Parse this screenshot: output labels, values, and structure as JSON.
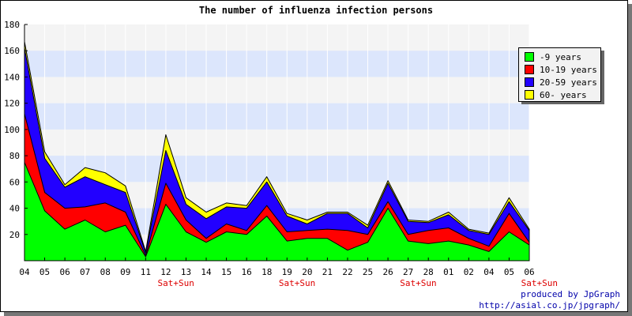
{
  "chart_data": {
    "type": "area",
    "stacked": true,
    "title": "The number of influenza infection persons",
    "categories": [
      "04",
      "05",
      "06",
      "07",
      "08",
      "09",
      "11",
      "12",
      "13",
      "14",
      "15",
      "16",
      "18",
      "19",
      "20",
      "21",
      "22",
      "25",
      "26",
      "27",
      "28",
      "01",
      "02",
      "04",
      "05",
      "06"
    ],
    "category_notes": {
      "7": "Sat+Sun",
      "13": "Sat+Sun",
      "19": "Sat+Sun",
      "25": "Sat+Sun"
    },
    "ylim": [
      0,
      180
    ],
    "yticks": [
      20,
      40,
      60,
      80,
      100,
      120,
      140,
      160,
      180
    ],
    "grid": "horizontal bands",
    "legend_position": "right",
    "series": [
      {
        "name": "-9 years",
        "color": "#00ff00",
        "values": [
          75,
          38,
          24,
          31,
          22,
          27,
          3,
          43,
          22,
          14,
          22,
          20,
          34,
          15,
          17,
          17,
          8,
          14,
          40,
          15,
          13,
          15,
          12,
          7,
          22,
          12
        ]
      },
      {
        "name": "10-19 years",
        "color": "#ff0000",
        "values": [
          37,
          14,
          16,
          10,
          22,
          10,
          1,
          16,
          9,
          3,
          6,
          3,
          8,
          7,
          6,
          7,
          15,
          6,
          5,
          5,
          10,
          10,
          5,
          4,
          14,
          2
        ]
      },
      {
        "name": "20-59 years",
        "color": "#2200ff",
        "values": [
          50,
          26,
          16,
          23,
          14,
          15,
          2,
          25,
          12,
          15,
          13,
          17,
          18,
          12,
          5,
          12,
          13,
          5,
          14,
          10,
          6,
          10,
          6,
          9,
          9,
          9
        ]
      },
      {
        "name": "60- years",
        "color": "#ffff00",
        "values": [
          5,
          5,
          2,
          7,
          9,
          5,
          1,
          12,
          5,
          5,
          3,
          2,
          4,
          2,
          3,
          1,
          1,
          2,
          2,
          1,
          1,
          2,
          1,
          1,
          3,
          1
        ]
      }
    ]
  },
  "footer": {
    "line1": "produced by JpGraph",
    "line2": "http://asial.co.jp/jpgraph/"
  }
}
